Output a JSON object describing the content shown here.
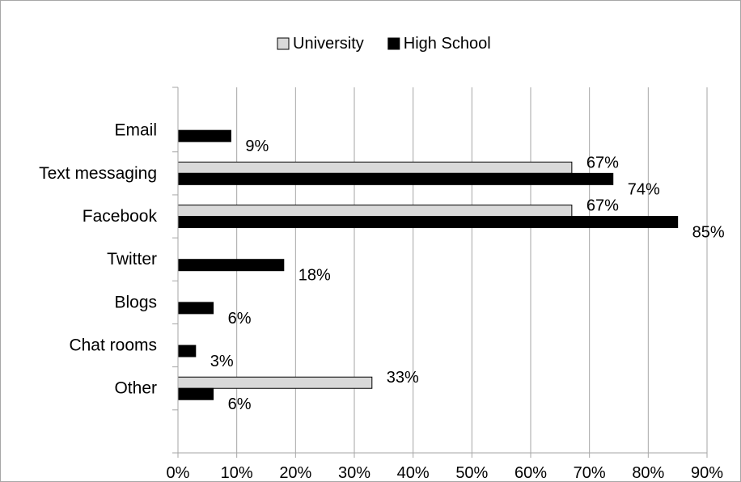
{
  "chart_data": {
    "type": "bar",
    "orientation": "horizontal",
    "categories": [
      "Email",
      "Text messaging",
      "Facebook",
      "Twitter",
      "Blogs",
      "Chat rooms",
      "Other"
    ],
    "series": [
      {
        "name": "University",
        "values": [
          null,
          67,
          67,
          null,
          null,
          null,
          33
        ],
        "labels": [
          "",
          "67%",
          "67%",
          "",
          "",
          "",
          "33%"
        ],
        "color": "#d9d9d9"
      },
      {
        "name": "High School",
        "values": [
          9,
          74,
          85,
          18,
          6,
          3,
          6
        ],
        "labels": [
          "9%",
          "74%",
          "85%",
          "18%",
          "6%",
          "3%",
          "6%"
        ],
        "color": "#000000"
      }
    ],
    "xlim": [
      0,
      90
    ],
    "xticks": [
      "0%",
      "10%",
      "20%",
      "30%",
      "40%",
      "50%",
      "60%",
      "70%",
      "80%",
      "90%"
    ],
    "grid": true,
    "legend": "top-center",
    "bar_border": "#000000"
  }
}
